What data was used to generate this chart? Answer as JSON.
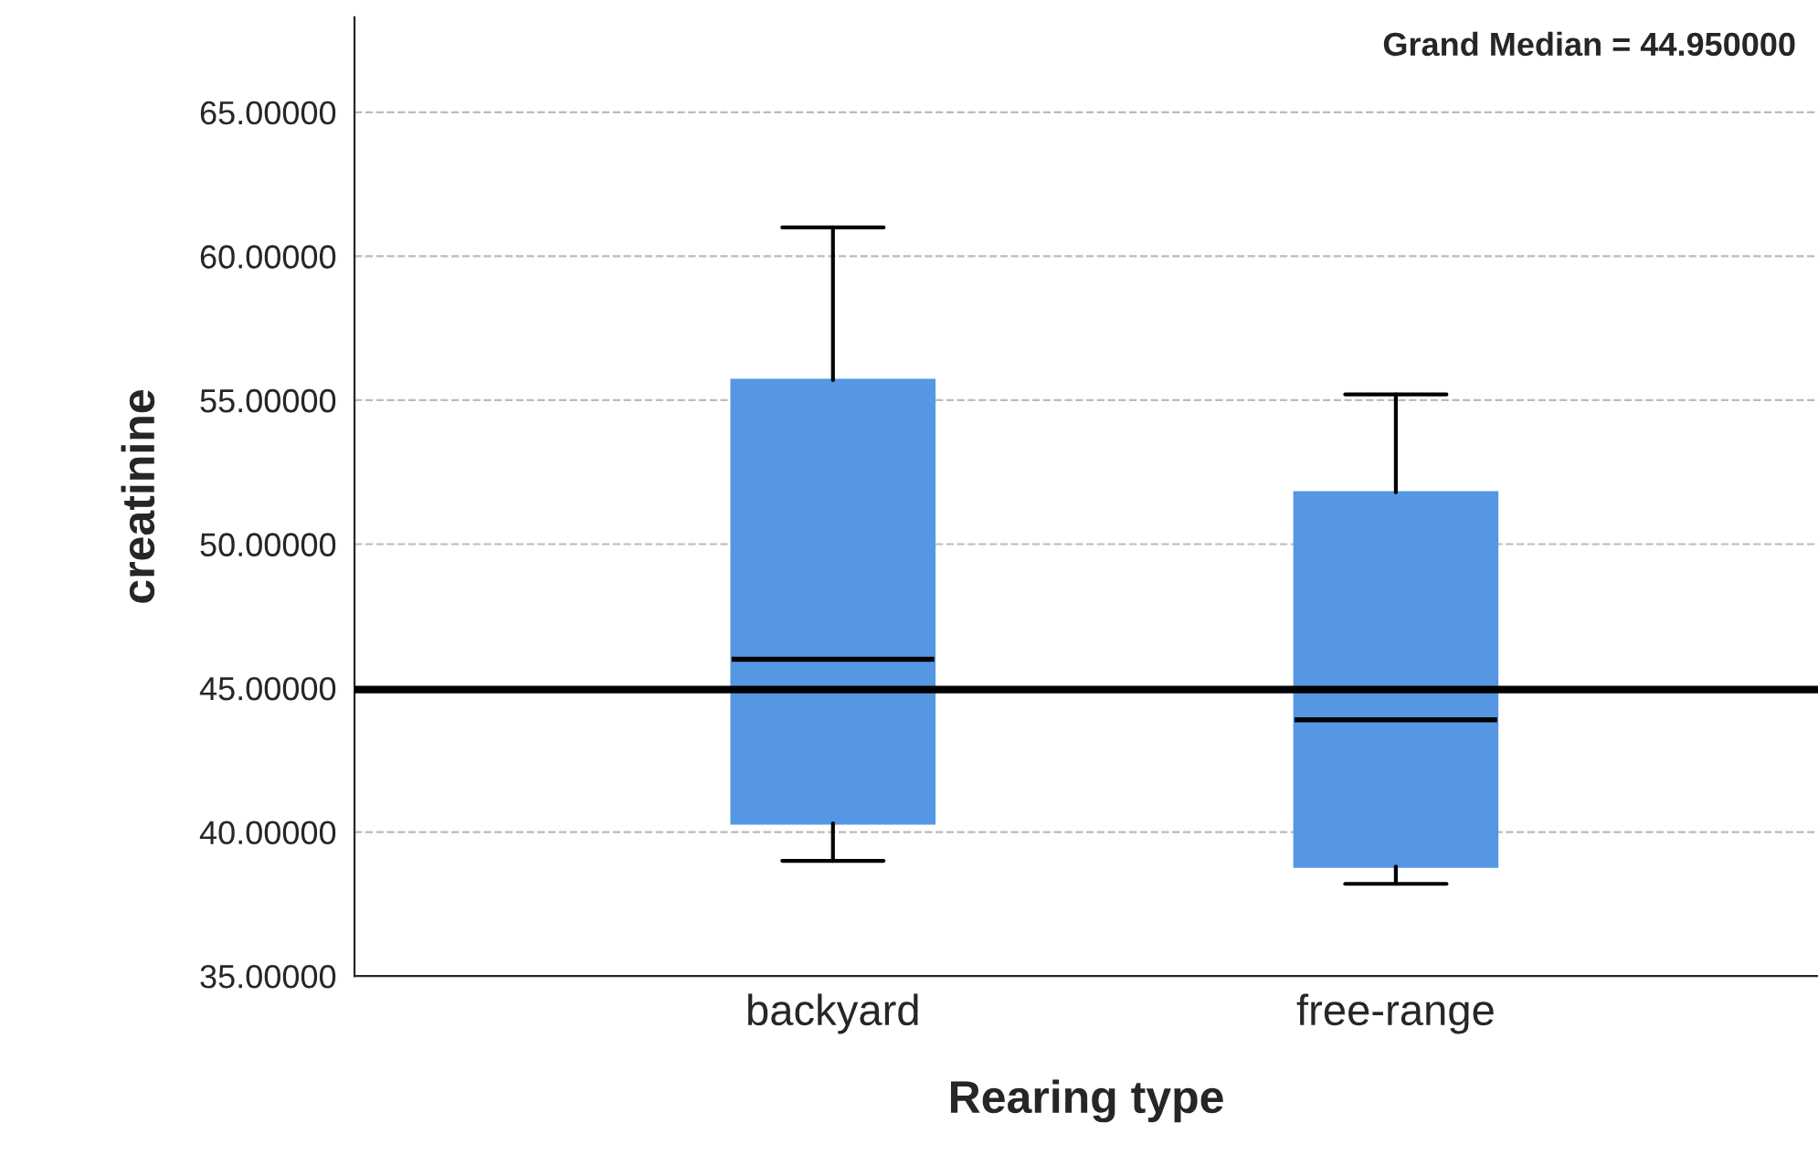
{
  "chart_data": {
    "type": "box",
    "xlabel": "Rearing type",
    "ylabel": "creatinine",
    "categories": [
      "backyard",
      "free-range"
    ],
    "boxes": [
      {
        "low": 39.0,
        "q1": 40.3,
        "median": 46.0,
        "q3": 55.7,
        "high": 61.0
      },
      {
        "low": 38.2,
        "q1": 38.8,
        "median": 43.9,
        "q3": 51.8,
        "high": 55.2
      }
    ],
    "color": "#5597e3",
    "ylim": [
      35,
      68.3
    ],
    "yticks": [
      {
        "value": 35,
        "label": "35.00000"
      },
      {
        "value": 40,
        "label": "40.00000"
      },
      {
        "value": 45,
        "label": "45.00000"
      },
      {
        "value": 50,
        "label": "50.00000"
      },
      {
        "value": 55,
        "label": "55.00000"
      },
      {
        "value": 60,
        "label": "60.00000"
      },
      {
        "value": 65,
        "label": "65.00000"
      }
    ],
    "grid": "y",
    "ref_lines": [
      {
        "axis": "y",
        "value": 44.95,
        "label": "Grand Median = 44.950000",
        "color": "#000000",
        "line_style": "solid"
      }
    ]
  }
}
